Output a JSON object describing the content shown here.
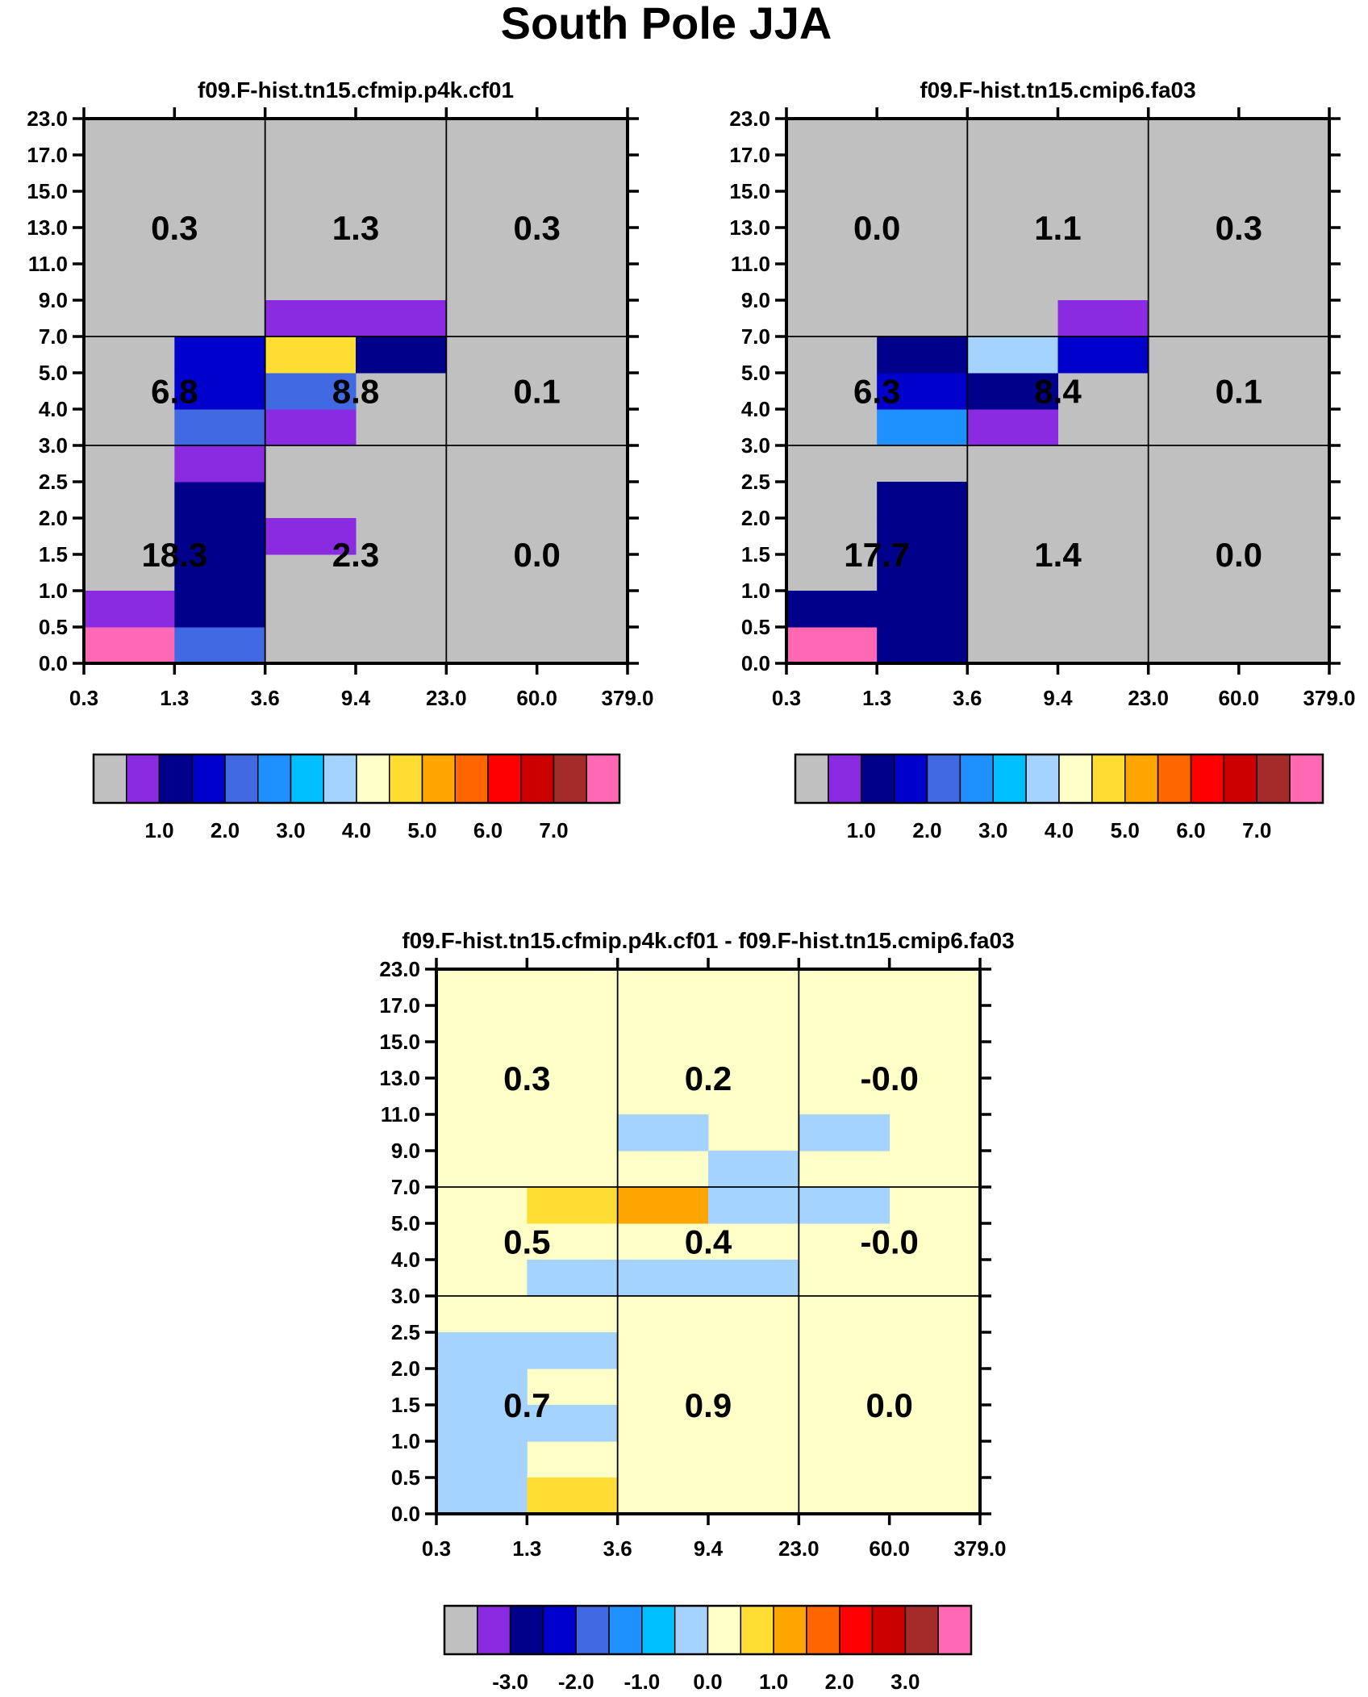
{
  "title": "South Pole JJA",
  "palette": [
    "#c0c0c0",
    "#8a2be2",
    "#00008b",
    "#0000cd",
    "#4169e1",
    "#1e90ff",
    "#00bfff",
    "#a4d3ff",
    "#ffffc8",
    "#ffdd33",
    "#ffa500",
    "#ff6600",
    "#ff0000",
    "#cc0000",
    "#a52a2a",
    "#ff69b4"
  ],
  "chart_data": [
    {
      "type": "heatmap",
      "title": "f09.F-hist.tn15.cfmip.p4k.cf01",
      "x_ticks": [
        "0.3",
        "1.3",
        "3.6",
        "9.4",
        "23.0",
        "60.0",
        "379.0"
      ],
      "y_ticks": [
        "0.0",
        "0.5",
        "1.0",
        "1.5",
        "2.0",
        "2.5",
        "3.0",
        "4.0",
        "5.0",
        "7.0",
        "9.0",
        "11.0",
        "13.0",
        "15.0",
        "17.0",
        "23.0"
      ],
      "background_bin": 0,
      "cells": [
        {
          "x": 0,
          "y": 0,
          "bin": 15
        },
        {
          "x": 0,
          "y": 1,
          "bin": 1
        },
        {
          "x": 1,
          "y": 0,
          "bin": 4
        },
        {
          "x": 1,
          "y": 1,
          "bin": 2
        },
        {
          "x": 1,
          "y": 2,
          "bin": 2
        },
        {
          "x": 1,
          "y": 3,
          "bin": 2
        },
        {
          "x": 1,
          "y": 4,
          "bin": 2
        },
        {
          "x": 1,
          "y": 5,
          "bin": 1
        },
        {
          "x": 1,
          "y": 6,
          "bin": 4
        },
        {
          "x": 1,
          "y": 7,
          "bin": 3
        },
        {
          "x": 1,
          "y": 8,
          "bin": 3
        },
        {
          "x": 2,
          "y": 3,
          "bin": 1
        },
        {
          "x": 2,
          "y": 6,
          "bin": 1
        },
        {
          "x": 2,
          "y": 7,
          "bin": 4
        },
        {
          "x": 2,
          "y": 8,
          "bin": 9
        },
        {
          "x": 2,
          "y": 9,
          "bin": 1
        },
        {
          "x": 3,
          "y": 8,
          "bin": 2
        },
        {
          "x": 3,
          "y": 9,
          "bin": 1
        }
      ],
      "box_values": [
        [
          "18.3",
          "2.3",
          "0.0"
        ],
        [
          "6.8",
          "8.8",
          "0.1"
        ],
        [
          "0.3",
          "1.3",
          "0.3"
        ]
      ],
      "colorbar_labels": [
        "1.0",
        "2.0",
        "3.0",
        "4.0",
        "5.0",
        "6.0",
        "7.0"
      ]
    },
    {
      "type": "heatmap",
      "title": "f09.F-hist.tn15.cmip6.fa03",
      "x_ticks": [
        "0.3",
        "1.3",
        "3.6",
        "9.4",
        "23.0",
        "60.0",
        "379.0"
      ],
      "y_ticks": [
        "0.0",
        "0.5",
        "1.0",
        "1.5",
        "2.0",
        "2.5",
        "3.0",
        "4.0",
        "5.0",
        "7.0",
        "9.0",
        "11.0",
        "13.0",
        "15.0",
        "17.0",
        "23.0"
      ],
      "background_bin": 0,
      "cells": [
        {
          "x": 0,
          "y": 0,
          "bin": 15
        },
        {
          "x": 0,
          "y": 1,
          "bin": 2
        },
        {
          "x": 1,
          "y": 0,
          "bin": 2
        },
        {
          "x": 1,
          "y": 1,
          "bin": 2
        },
        {
          "x": 1,
          "y": 2,
          "bin": 2
        },
        {
          "x": 1,
          "y": 3,
          "bin": 2
        },
        {
          "x": 1,
          "y": 4,
          "bin": 2
        },
        {
          "x": 1,
          "y": 6,
          "bin": 5
        },
        {
          "x": 1,
          "y": 7,
          "bin": 3
        },
        {
          "x": 1,
          "y": 8,
          "bin": 2
        },
        {
          "x": 2,
          "y": 6,
          "bin": 1
        },
        {
          "x": 2,
          "y": 7,
          "bin": 2
        },
        {
          "x": 2,
          "y": 8,
          "bin": 7
        },
        {
          "x": 3,
          "y": 8,
          "bin": 3
        },
        {
          "x": 3,
          "y": 9,
          "bin": 1
        }
      ],
      "box_values": [
        [
          "17.7",
          "1.4",
          "0.0"
        ],
        [
          "6.3",
          "8.4",
          "0.1"
        ],
        [
          "0.0",
          "1.1",
          "0.3"
        ]
      ],
      "colorbar_labels": [
        "1.0",
        "2.0",
        "3.0",
        "4.0",
        "5.0",
        "6.0",
        "7.0"
      ]
    },
    {
      "type": "heatmap",
      "title": "f09.F-hist.tn15.cfmip.p4k.cf01 - f09.F-hist.tn15.cmip6.fa03",
      "x_ticks": [
        "0.3",
        "1.3",
        "3.6",
        "9.4",
        "23.0",
        "60.0",
        "379.0"
      ],
      "y_ticks": [
        "0.0",
        "0.5",
        "1.0",
        "1.5",
        "2.0",
        "2.5",
        "3.0",
        "4.0",
        "5.0",
        "7.0",
        "9.0",
        "11.0",
        "13.0",
        "15.0",
        "17.0",
        "23.0"
      ],
      "background_bin": 8,
      "cells": [
        {
          "x": 0,
          "y": 0,
          "bin": 7
        },
        {
          "x": 0,
          "y": 1,
          "bin": 7
        },
        {
          "x": 0,
          "y": 2,
          "bin": 7
        },
        {
          "x": 0,
          "y": 3,
          "bin": 7
        },
        {
          "x": 0,
          "y": 4,
          "bin": 7
        },
        {
          "x": 1,
          "y": 0,
          "bin": 9
        },
        {
          "x": 1,
          "y": 2,
          "bin": 7
        },
        {
          "x": 1,
          "y": 4,
          "bin": 7
        },
        {
          "x": 1,
          "y": 6,
          "bin": 7
        },
        {
          "x": 1,
          "y": 8,
          "bin": 9
        },
        {
          "x": 2,
          "y": 6,
          "bin": 7
        },
        {
          "x": 2,
          "y": 8,
          "bin": 10
        },
        {
          "x": 2,
          "y": 10,
          "bin": 7
        },
        {
          "x": 3,
          "y": 6,
          "bin": 7
        },
        {
          "x": 3,
          "y": 8,
          "bin": 7
        },
        {
          "x": 3,
          "y": 9,
          "bin": 7
        },
        {
          "x": 4,
          "y": 8,
          "bin": 7
        },
        {
          "x": 4,
          "y": 10,
          "bin": 7
        }
      ],
      "box_values": [
        [
          "0.7",
          "0.9",
          "0.0"
        ],
        [
          "0.5",
          "0.4",
          "-0.0"
        ],
        [
          "0.3",
          "0.2",
          "-0.0"
        ]
      ],
      "colorbar_labels": [
        "-3.0",
        "-2.0",
        "-1.0",
        "0.0",
        "1.0",
        "2.0",
        "3.0"
      ]
    }
  ]
}
